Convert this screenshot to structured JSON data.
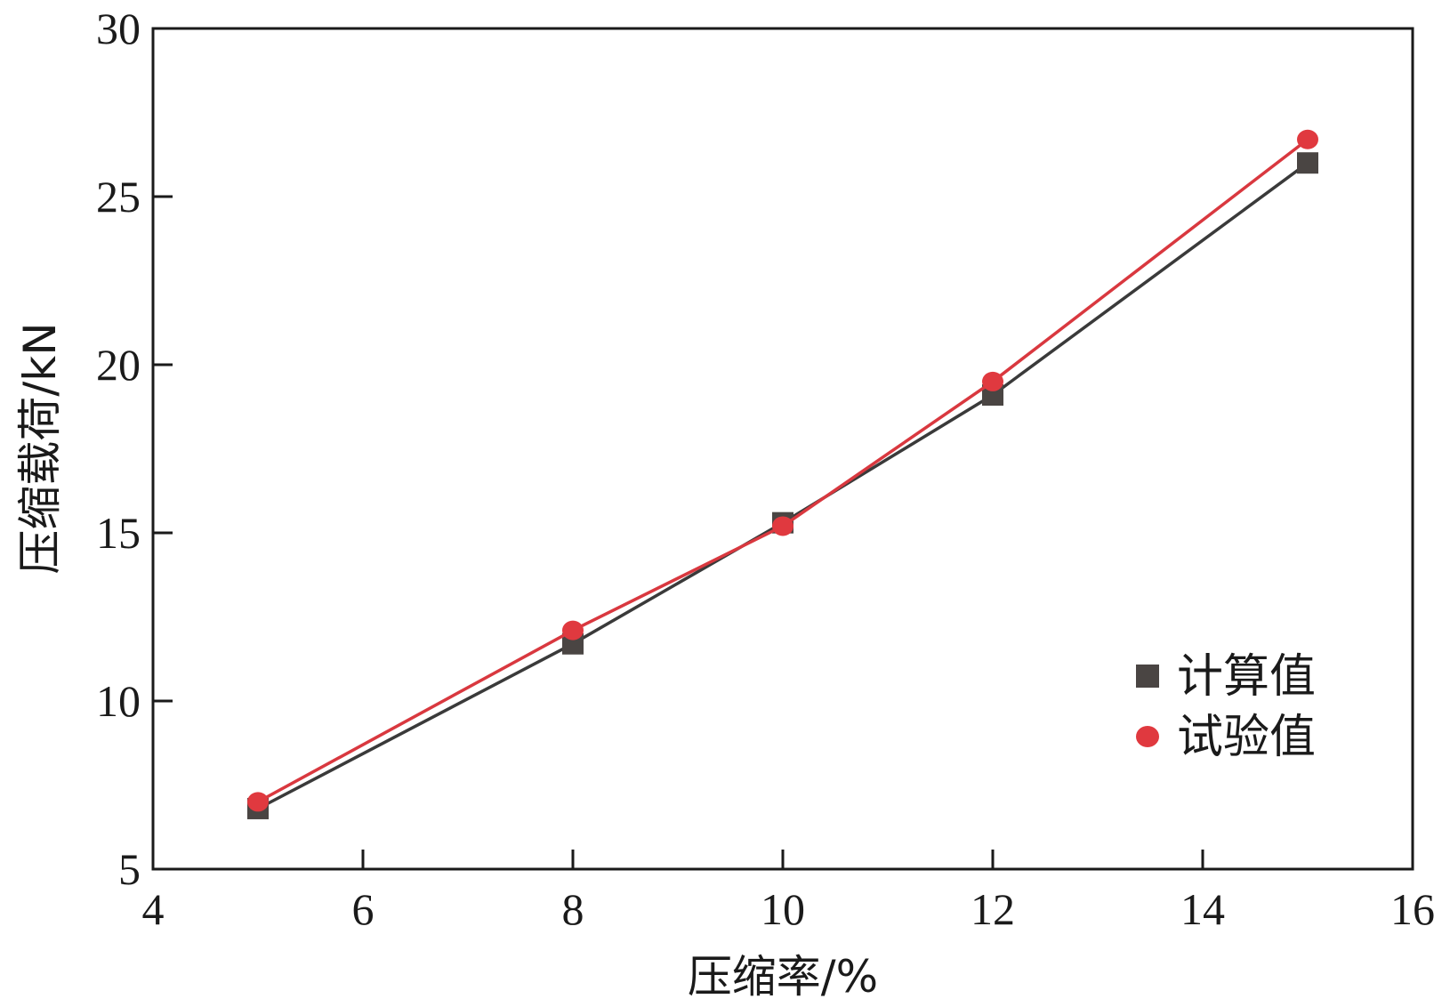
{
  "chart_data": {
    "type": "line",
    "xlabel": "压缩率/%",
    "ylabel": "压缩载荷/kN",
    "xlim": [
      4,
      16
    ],
    "ylim": [
      5,
      30
    ],
    "xticks": [
      4,
      6,
      8,
      10,
      12,
      14,
      16
    ],
    "yticks": [
      5,
      10,
      15,
      20,
      25,
      30
    ],
    "grid": false,
    "legend_position": "lower-right",
    "series": [
      {
        "name": "计算值",
        "marker": "square",
        "color": "#3a3a3a",
        "marker_color": "#4a4543",
        "x": [
          5,
          8,
          10,
          12,
          15
        ],
        "y": [
          6.8,
          11.7,
          15.3,
          19.1,
          26.0
        ]
      },
      {
        "name": "试验值",
        "marker": "circle",
        "color": "#d9383f",
        "marker_color": "#e0393f",
        "x": [
          5,
          8,
          10,
          12,
          15
        ],
        "y": [
          7.0,
          12.1,
          15.2,
          19.5,
          26.7
        ]
      }
    ]
  }
}
